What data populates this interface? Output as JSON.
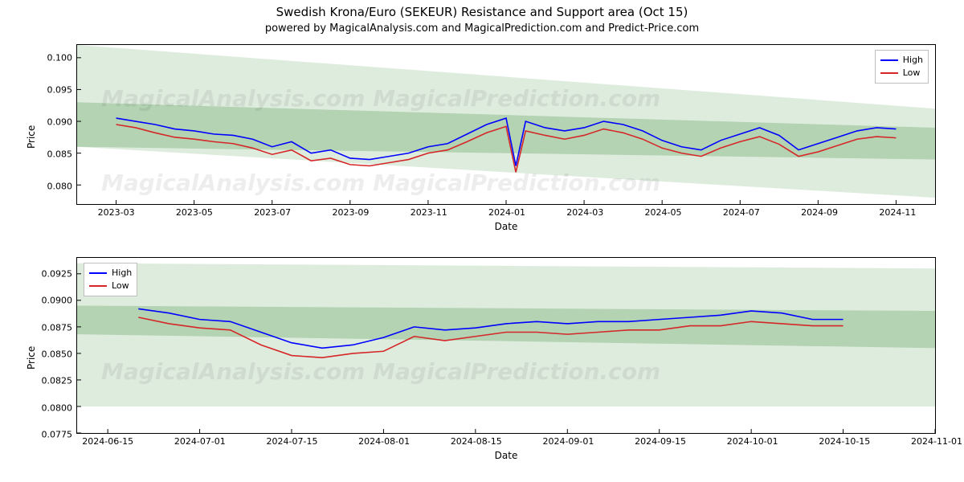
{
  "title": "Swedish Krona/Euro (SEKEUR) Resistance and Support area (Oct 15)",
  "subtitle": "powered by MagicalAnalysis.com and MagicalPrediction.com and Predict-Price.com",
  "watermark": "MagicalAnalysis.com   MagicalPrediction.com",
  "colors": {
    "high": "#0000ff",
    "low": "#d62728",
    "band1": "rgba(90,160,90,0.20)",
    "band2": "rgba(90,160,90,0.32)",
    "axis": "#000000",
    "legend_border": "#bfbfbf"
  },
  "legend": {
    "high": "High",
    "low": "Low"
  },
  "top": {
    "xlabel": "Date",
    "ylabel": "Price",
    "xlim": [
      0,
      22
    ],
    "ylim": [
      0.077,
      0.102
    ],
    "yticks": [
      0.08,
      0.085,
      0.09,
      0.095,
      0.1
    ],
    "ytick_labels": [
      "0.080",
      "0.085",
      "0.090",
      "0.095",
      "0.100"
    ],
    "xticks": [
      1,
      3,
      5,
      7,
      9,
      11,
      13,
      15,
      17,
      19,
      21,
      23
    ],
    "xtick_labels": [
      "2023-03",
      "2023-05",
      "2023-07",
      "2023-09",
      "2023-11",
      "2024-01",
      "2024-03",
      "2024-05",
      "2024-07",
      "2024-09",
      "2024-11",
      ""
    ],
    "bands": [
      {
        "fill": "band1",
        "poly": [
          [
            0,
            0.102
          ],
          [
            22,
            0.092
          ],
          [
            22,
            0.078
          ],
          [
            0,
            0.086
          ]
        ]
      },
      {
        "fill": "band2",
        "poly": [
          [
            0,
            0.093
          ],
          [
            22,
            0.089
          ],
          [
            22,
            0.084
          ],
          [
            0,
            0.086
          ]
        ]
      }
    ],
    "series_x": [
      1,
      1.5,
      2,
      2.5,
      3,
      3.5,
      4,
      4.5,
      5,
      5.5,
      6,
      6.5,
      7,
      7.5,
      8,
      8.5,
      9,
      9.5,
      10,
      10.5,
      11,
      11.25,
      11.5,
      12,
      12.5,
      13,
      13.5,
      14,
      14.5,
      15,
      15.5,
      16,
      16.5,
      17,
      17.5,
      18,
      18.5,
      19,
      19.5,
      20,
      20.5,
      21
    ],
    "high": [
      0.0905,
      0.09,
      0.0895,
      0.0888,
      0.0885,
      0.088,
      0.0878,
      0.0872,
      0.086,
      0.0868,
      0.085,
      0.0855,
      0.0842,
      0.084,
      0.0845,
      0.085,
      0.086,
      0.0865,
      0.088,
      0.0895,
      0.0905,
      0.083,
      0.09,
      0.089,
      0.0885,
      0.089,
      0.09,
      0.0895,
      0.0885,
      0.087,
      0.086,
      0.0855,
      0.087,
      0.088,
      0.089,
      0.0878,
      0.0855,
      0.0865,
      0.0875,
      0.0885,
      0.089,
      0.0888
    ],
    "low": [
      0.0895,
      0.089,
      0.0882,
      0.0875,
      0.0872,
      0.0868,
      0.0865,
      0.0858,
      0.0848,
      0.0855,
      0.0838,
      0.0842,
      0.0832,
      0.083,
      0.0835,
      0.084,
      0.085,
      0.0855,
      0.0868,
      0.0882,
      0.0892,
      0.082,
      0.0885,
      0.0878,
      0.0872,
      0.0878,
      0.0888,
      0.0882,
      0.0872,
      0.0858,
      0.085,
      0.0845,
      0.0858,
      0.0868,
      0.0876,
      0.0864,
      0.0845,
      0.0852,
      0.0862,
      0.0872,
      0.0876,
      0.0874
    ]
  },
  "bottom": {
    "xlabel": "Date",
    "ylabel": "Price",
    "xlim": [
      0,
      14
    ],
    "ylim": [
      0.0775,
      0.094
    ],
    "yticks": [
      0.0775,
      0.08,
      0.0825,
      0.085,
      0.0875,
      0.09,
      0.0925
    ],
    "ytick_labels": [
      "0.0775",
      "0.0800",
      "0.0825",
      "0.0850",
      "0.0875",
      "0.0900",
      "0.0925"
    ],
    "xticks": [
      0.5,
      2,
      3.5,
      5,
      6.5,
      8,
      9.5,
      11,
      12.5,
      14
    ],
    "xtick_labels": [
      "2024-06-15",
      "2024-07-01",
      "2024-07-15",
      "2024-08-01",
      "2024-08-15",
      "2024-09-01",
      "2024-09-15",
      "2024-10-01",
      "2024-10-15",
      "2024-11-01"
    ],
    "bands": [
      {
        "fill": "band1",
        "poly": [
          [
            0,
            0.0935
          ],
          [
            14,
            0.093
          ],
          [
            14,
            0.08
          ],
          [
            0,
            0.08
          ]
        ]
      },
      {
        "fill": "band2",
        "poly": [
          [
            0,
            0.0895
          ],
          [
            14,
            0.089
          ],
          [
            14,
            0.0855
          ],
          [
            0,
            0.0868
          ]
        ]
      }
    ],
    "series_x": [
      1,
      1.5,
      2,
      2.5,
      3,
      3.5,
      4,
      4.5,
      5,
      5.5,
      6,
      6.5,
      7,
      7.5,
      8,
      8.5,
      9,
      9.5,
      10,
      10.5,
      11,
      11.5,
      12,
      12.5
    ],
    "high": [
      0.0892,
      0.0888,
      0.0882,
      0.088,
      0.087,
      0.086,
      0.0855,
      0.0858,
      0.0865,
      0.0875,
      0.0872,
      0.0874,
      0.0878,
      0.088,
      0.0878,
      0.088,
      0.088,
      0.0882,
      0.0884,
      0.0886,
      0.089,
      0.0888,
      0.0882,
      0.0882
    ],
    "low": [
      0.0884,
      0.0878,
      0.0874,
      0.0872,
      0.0858,
      0.0848,
      0.0846,
      0.085,
      0.0852,
      0.0866,
      0.0862,
      0.0866,
      0.087,
      0.087,
      0.0868,
      0.087,
      0.0872,
      0.0872,
      0.0876,
      0.0876,
      0.088,
      0.0878,
      0.0876,
      0.0876
    ]
  }
}
